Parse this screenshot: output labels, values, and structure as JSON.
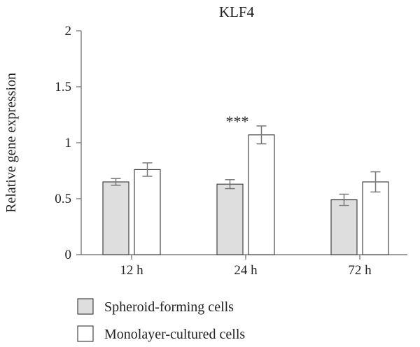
{
  "chart_data": {
    "type": "bar",
    "title": "KLF4",
    "xlabel": "",
    "ylabel": "Relative gene expression",
    "categories": [
      "12 h",
      "24 h",
      "72 h"
    ],
    "ylim": [
      0,
      2
    ],
    "yticks": [
      0,
      0.5,
      1,
      1.5,
      2
    ],
    "ytick_labels": [
      "0",
      "0.5",
      "1",
      "1.5",
      "2"
    ],
    "series": [
      {
        "name": "Spheroid-forming cells",
        "values": [
          0.65,
          0.63,
          0.49
        ],
        "errors": [
          0.03,
          0.04,
          0.05
        ],
        "color": "#dedede"
      },
      {
        "name": "Monolayer-cultured cells",
        "values": [
          0.76,
          1.07,
          0.65
        ],
        "errors": [
          0.06,
          0.08,
          0.09
        ],
        "color": "#ffffff"
      }
    ],
    "annotations": [
      {
        "text": "***",
        "category_index": 1,
        "y": 1.23
      }
    ],
    "legend_position": "bottom-left",
    "grid": false
  }
}
